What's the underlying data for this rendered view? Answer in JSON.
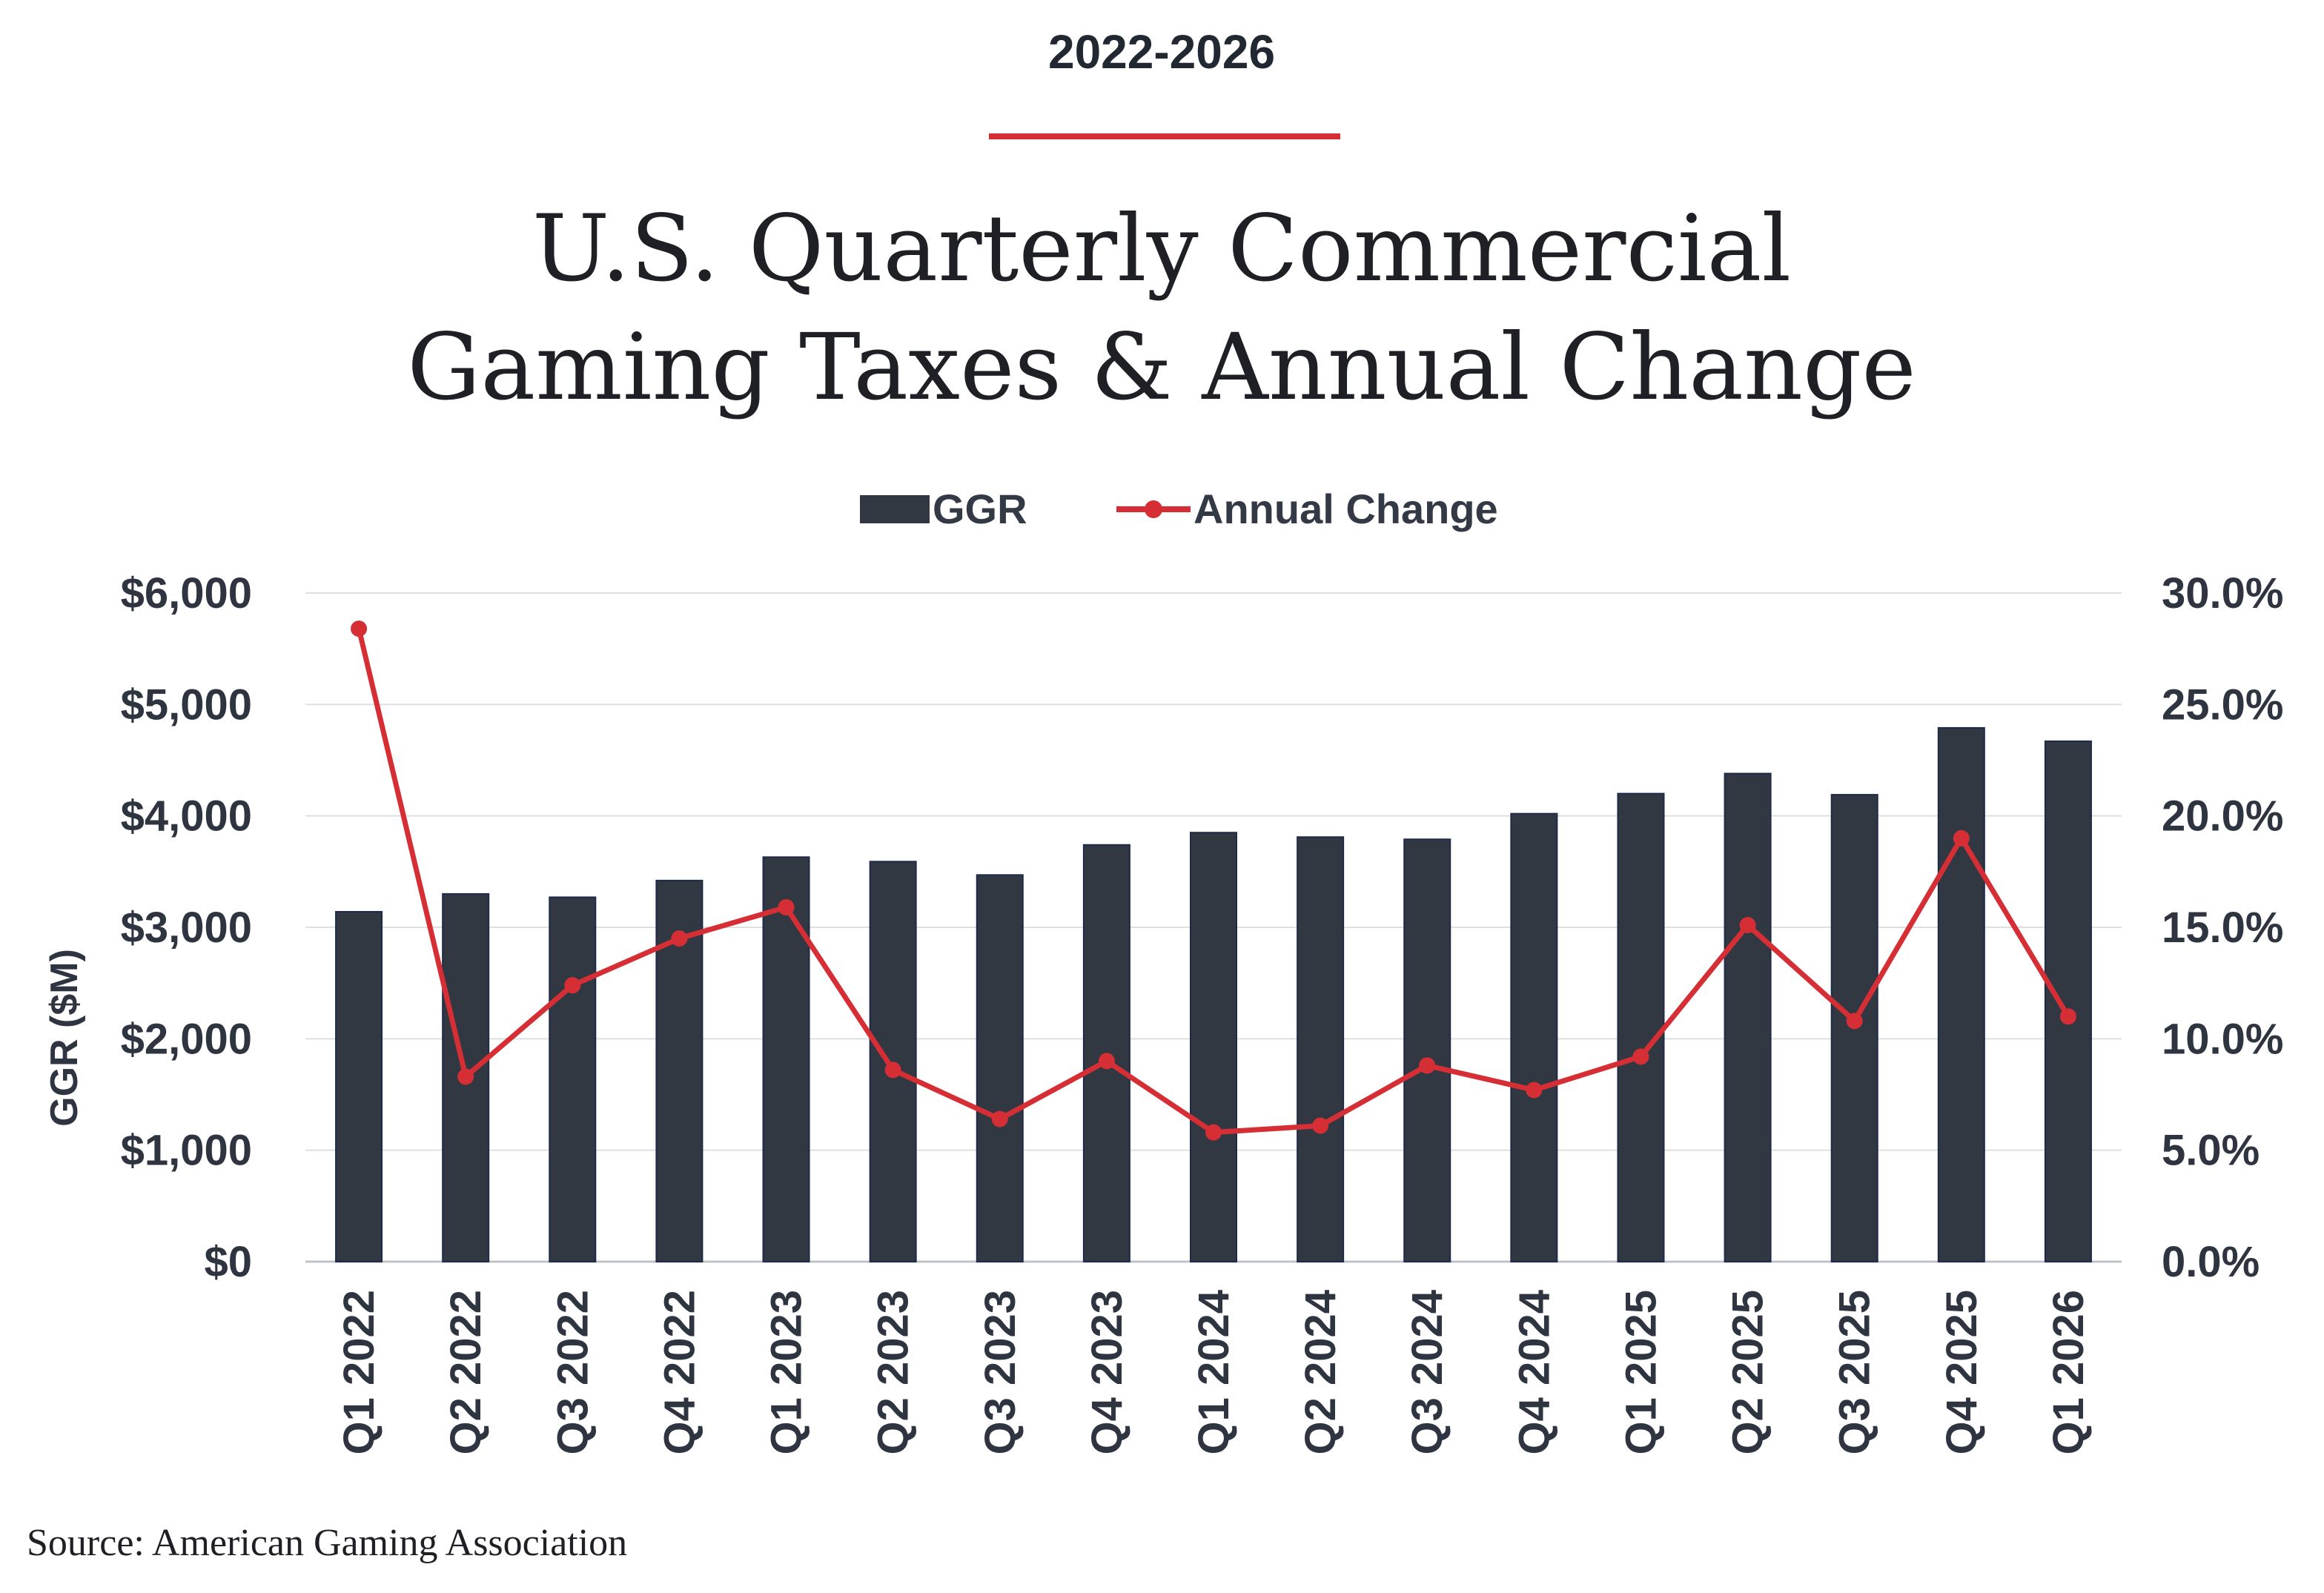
{
  "header": {
    "years": "2022-2026",
    "title_line1": "U.S. Quarterly Commercial",
    "title_line2": "Gaming Taxes & Annual Change"
  },
  "source": "Source: American Gaming Association",
  "colors": {
    "accent": "#d62e35",
    "bar": "#313842",
    "grid": "#dcdfe3",
    "text": "#2f3540"
  },
  "chart_data": {
    "type": "bar",
    "title": "U.S. Quarterly Commercial Gaming Taxes & Annual Change",
    "subtitle": "2022-2026",
    "ylabel": "GGR ($M)",
    "y2label": "",
    "ylim": [
      0,
      6000
    ],
    "y2lim": [
      0,
      30
    ],
    "yticks": [
      "$0",
      "$1,000",
      "$2,000",
      "$3,000",
      "$4,000",
      "$5,000",
      "$6,000"
    ],
    "y2ticks": [
      "0.0%",
      "5.0%",
      "10.0%",
      "15.0%",
      "20.0%",
      "25.0%",
      "30.0%"
    ],
    "grid": true,
    "legend_position": "top-center",
    "categories": [
      "Q1 2022",
      "Q2 2022",
      "Q3 2022",
      "Q4 2022",
      "Q1 2023",
      "Q2 2023",
      "Q3 2023",
      "Q4 2023",
      "Q1 2024",
      "Q2 2024",
      "Q3 2024",
      "Q4 2024",
      "Q1 2025",
      "Q2 2025",
      "Q3 2025",
      "Q4 2025",
      "Q1 2026"
    ],
    "series": [
      {
        "name": "GGR",
        "type": "bar",
        "axis": "left",
        "values": [
          3140,
          3300,
          3270,
          3420,
          3630,
          3590,
          3470,
          3740,
          3850,
          3810,
          3790,
          4020,
          4200,
          4380,
          4190,
          4790,
          4670
        ]
      },
      {
        "name": "Annual Change",
        "type": "line",
        "axis": "right",
        "values": [
          28.4,
          8.3,
          12.4,
          14.5,
          15.9,
          8.6,
          6.4,
          9.0,
          5.8,
          6.1,
          8.8,
          7.7,
          9.2,
          15.1,
          10.8,
          19.0,
          11.0
        ]
      }
    ]
  }
}
